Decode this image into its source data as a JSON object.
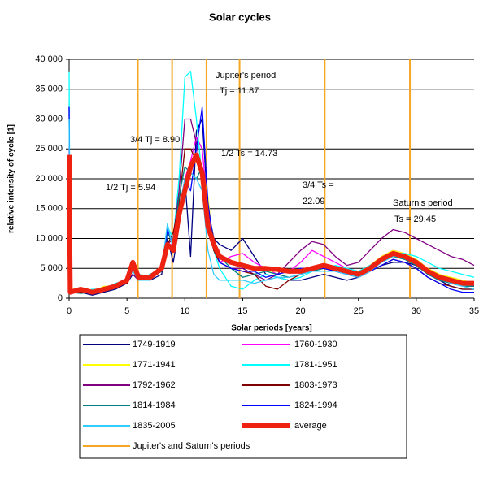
{
  "chart_data": {
    "type": "line",
    "title": "Solar cycles",
    "xlabel": "Solar periods [years]",
    "ylabel": "relative intensity of cycle [1]",
    "x": [
      0,
      0.1,
      1,
      2,
      3,
      4,
      5,
      5.5,
      6,
      7,
      8,
      8.5,
      9,
      9.5,
      10,
      10.5,
      11,
      11.5,
      12,
      12.5,
      13,
      14,
      15,
      16,
      17,
      18,
      19,
      20,
      21,
      22,
      23,
      24,
      25,
      26,
      27,
      28,
      29,
      30,
      31,
      32,
      33,
      34,
      35
    ],
    "xlim": [
      0,
      35
    ],
    "xticks": [
      0,
      5,
      10,
      15,
      20,
      25,
      30,
      35
    ],
    "ylim": [
      0,
      40000
    ],
    "yticks": [
      {
        "value": 0,
        "label": "0"
      },
      {
        "value": 5000,
        "label": "5 000"
      },
      {
        "value": 10000,
        "label": "10 000"
      },
      {
        "value": 15000,
        "label": "15 000"
      },
      {
        "value": 20000,
        "label": "20 000"
      },
      {
        "value": 25000,
        "label": "25 000"
      },
      {
        "value": 30000,
        "label": "30 000"
      },
      {
        "value": 35000,
        "label": "35 000"
      },
      {
        "value": 40000,
        "label": "40 000"
      }
    ],
    "grid": true,
    "series": [
      {
        "name": "1749-1919",
        "color": "#000080",
        "values": [
          32000,
          1000,
          1000,
          500,
          1000,
          1500,
          2500,
          4000,
          3000,
          3000,
          4000,
          10000,
          6000,
          12000,
          20000,
          7000,
          28000,
          30000,
          15000,
          10000,
          9000,
          8000,
          10000,
          7000,
          4000,
          3500,
          3000,
          3000,
          3500,
          4000,
          3500,
          3000,
          3500,
          4500,
          5500,
          6000,
          6000,
          5500,
          4000,
          3000,
          2000,
          1500,
          1500
        ]
      },
      {
        "name": "1760-1930",
        "color": "#ff00ff",
        "values": [
          25000,
          800,
          1200,
          1000,
          1500,
          2000,
          3000,
          5000,
          3000,
          4000,
          5000,
          9000,
          9000,
          15000,
          20000,
          23000,
          27000,
          25000,
          15000,
          8000,
          6000,
          7000,
          7500,
          6000,
          5000,
          4000,
          4500,
          6000,
          8000,
          7000,
          6000,
          5000,
          4500,
          5500,
          7000,
          8000,
          7500,
          6500,
          5000,
          4000,
          3000,
          2500,
          2000
        ]
      },
      {
        "name": "1771-1941",
        "color": "#ffff00",
        "values": [
          24000,
          1500,
          1500,
          1000,
          2000,
          2000,
          3000,
          5000,
          3500,
          3500,
          5000,
          8000,
          9000,
          14000,
          19000,
          22000,
          23000,
          22000,
          17000,
          8000,
          7000,
          6000,
          5500,
          5000,
          4500,
          4500,
          4500,
          4500,
          5000,
          5000,
          5000,
          4500,
          4500,
          5500,
          7000,
          8000,
          7500,
          6500,
          5000,
          4000,
          3500,
          3000,
          2500
        ]
      },
      {
        "name": "1781-1951",
        "color": "#00ffff",
        "values": [
          38000,
          1500,
          1000,
          1500,
          1500,
          2500,
          3000,
          5000,
          3000,
          4000,
          5000,
          12000,
          10000,
          20000,
          37000,
          38000,
          30000,
          20000,
          14000,
          8000,
          5000,
          2000,
          1500,
          3000,
          4000,
          3500,
          3000,
          3500,
          4500,
          5000,
          5500,
          5000,
          4500,
          5500,
          6500,
          7500,
          7500,
          7000,
          6000,
          5000,
          4500,
          4000,
          3500
        ]
      },
      {
        "name": "1792-1962",
        "color": "#800080",
        "values": [
          20000,
          1000,
          1200,
          1000,
          1500,
          2000,
          3000,
          4000,
          3000,
          3500,
          4500,
          9000,
          10000,
          18000,
          30000,
          30000,
          26000,
          20000,
          12000,
          8000,
          6000,
          5000,
          5000,
          4000,
          3000,
          4000,
          6000,
          8000,
          9500,
          9000,
          7000,
          5500,
          6000,
          8000,
          10000,
          11500,
          11000,
          10000,
          9000,
          8000,
          7000,
          6500,
          5500
        ]
      },
      {
        "name": "1803-1973",
        "color": "#800000",
        "values": [
          22000,
          1000,
          1000,
          1000,
          1500,
          2000,
          2500,
          5000,
          3500,
          3500,
          4500,
          9000,
          11000,
          16000,
          25000,
          25000,
          23000,
          20000,
          12000,
          8000,
          6000,
          5000,
          4500,
          4000,
          2000,
          1500,
          3000,
          4000,
          5000,
          5000,
          4500,
          4000,
          3500,
          4500,
          5500,
          6500,
          6000,
          5000,
          3500,
          2500,
          2000,
          1500,
          1500
        ]
      },
      {
        "name": "1814-1984",
        "color": "#008080",
        "values": [
          23000,
          1000,
          800,
          1000,
          1500,
          2000,
          3000,
          5500,
          4000,
          3500,
          4500,
          11000,
          9000,
          17000,
          22000,
          21000,
          20000,
          22000,
          13000,
          9000,
          7000,
          5000,
          3500,
          4000,
          4500,
          4000,
          3500,
          4000,
          4500,
          5000,
          5000,
          4500,
          4000,
          5000,
          6000,
          7000,
          6500,
          5500,
          4000,
          3000,
          2500,
          2000,
          2000
        ]
      },
      {
        "name": "1824-1994",
        "color": "#0000ff",
        "values": [
          32000,
          1200,
          1500,
          1000,
          1500,
          2000,
          3000,
          5000,
          3500,
          3500,
          5000,
          11500,
          9000,
          13000,
          20000,
          18000,
          25000,
          32000,
          16000,
          9000,
          6000,
          5000,
          4500,
          4500,
          3500,
          4000,
          4500,
          5000,
          5000,
          5000,
          4500,
          4000,
          3500,
          4500,
          5500,
          6500,
          6000,
          5000,
          3500,
          2500,
          1500,
          1000,
          1000
        ]
      },
      {
        "name": "1835-2005",
        "color": "#33ccff",
        "values": [
          30000,
          1000,
          1500,
          1000,
          1500,
          2000,
          3000,
          4500,
          3000,
          3000,
          5000,
          12500,
          8000,
          15000,
          20000,
          21000,
          20000,
          18000,
          8000,
          4000,
          3000,
          3000,
          3000,
          2500,
          3000,
          3500,
          3500,
          4000,
          4500,
          4500,
          4500,
          4000,
          3500,
          4500,
          6000,
          7000,
          7000,
          6000,
          4500,
          3500,
          2500,
          2000,
          1500
        ]
      },
      {
        "name": "average",
        "color": "#ee2211",
        "values": [
          24000,
          1000,
          1500,
          1000,
          1500,
          2000,
          3000,
          6000,
          3500,
          3500,
          5000,
          9000,
          8000,
          14000,
          18000,
          22000,
          24000,
          21000,
          12000,
          9000,
          7000,
          6000,
          5500,
          5000,
          5000,
          4800,
          4500,
          4500,
          5000,
          5500,
          5000,
          4500,
          4000,
          5000,
          6500,
          7500,
          7000,
          6000,
          4500,
          3500,
          3000,
          2500,
          2500
        ]
      }
    ],
    "periods": {
      "name": "Jupiter's and Saturn's periods",
      "color": "#f5a623",
      "x": [
        5.94,
        8.9,
        11.87,
        14.73,
        22.09,
        29.45
      ]
    },
    "annotations": [
      "Jupiter's period",
      "Tj = 11.87",
      "3/4 Tj = 8.90",
      "1/2 Ts = 14.73",
      "1/2 Tj = 5.94",
      "3/4 Ts =",
      "22.09",
      "Saturn's period",
      "Ts = 29.45"
    ]
  }
}
